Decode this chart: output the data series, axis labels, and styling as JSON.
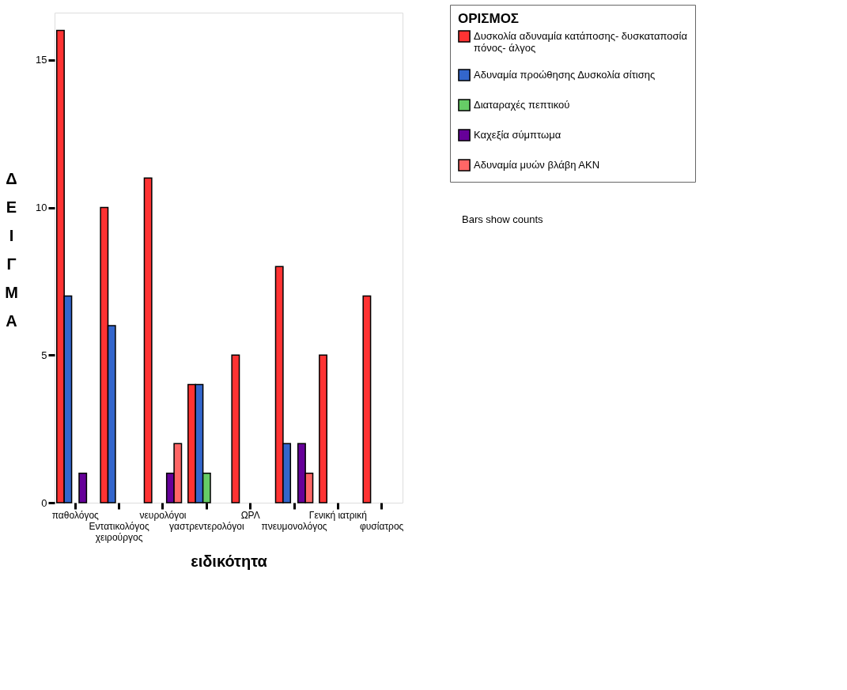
{
  "chart_data": {
    "type": "bar",
    "xlabel": "ειδικότητα",
    "ylabel": "ΔΕΙΓΜΑ",
    "legend_title": "ΟΡΙΣΜΟΣ",
    "categories": [
      "παθολόγος",
      "Εντατικολόγος χειρούργος",
      "νευρολόγοι",
      "γαστρεντερολόγοι",
      "ΩΡΛ",
      "πνευμονολόγος",
      "Γενική ιατρική",
      "φυσίατρος"
    ],
    "series": [
      {
        "name": "Δυσκολία αδυναμία κατάποσης- δυσκαταποσία πόνος- άλγος",
        "color": "#ff3333",
        "values": [
          16,
          10,
          11,
          4,
          5,
          8,
          5,
          7
        ]
      },
      {
        "name": "Αδυναμία προώθησης Δυσκολία σίτισης",
        "color": "#3366cc",
        "values": [
          7,
          6,
          0,
          4,
          0,
          2,
          0,
          0
        ]
      },
      {
        "name": "Διαταραχές πεπτικού",
        "color": "#66cc66",
        "values": [
          0,
          0,
          0,
          1,
          0,
          0,
          0,
          0
        ]
      },
      {
        "name": "Καχεξία σύμπτωμα",
        "color": "#660099",
        "values": [
          1,
          0,
          1,
          0,
          0,
          2,
          0,
          0
        ]
      },
      {
        "name": "Αδυναμία μυών βλάβη ΑΚΝ",
        "color": "#ff6666",
        "values": [
          0,
          0,
          2,
          0,
          0,
          1,
          0,
          0
        ]
      }
    ],
    "ylim": [
      0,
      16.6
    ],
    "yticks": [
      0,
      5,
      10,
      15
    ],
    "grid": false,
    "legend": "top right",
    "annotations": [
      "Bars show counts"
    ]
  }
}
